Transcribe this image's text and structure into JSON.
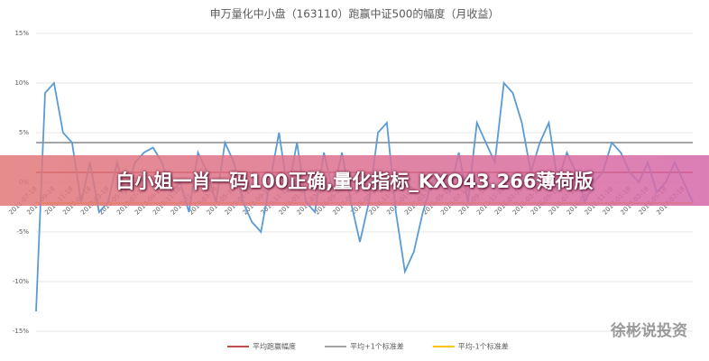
{
  "chart_data": {
    "type": "line",
    "title": "申万量化中小盘（163110）跑赢中证500的幅度（月收益）",
    "categories": [
      "2011-07-18",
      null,
      "2011-09-18",
      null,
      "2011-11-18",
      null,
      "2012-01-18",
      null,
      "2012-03-18",
      null,
      "2012-05-18",
      null,
      "2012-07-18",
      null,
      "2012-09-18",
      null,
      "2012-11-18",
      null,
      "2013-01-18",
      null,
      "2013-03-18",
      null,
      "2013-05-18",
      null,
      "2013-07-18",
      null,
      "2013-09-18",
      null,
      "2013-11-18",
      null,
      "2014-01-18",
      null,
      "2014-03-18",
      null,
      "2014-05-18",
      null,
      "2014-07-18",
      null,
      "2014-09-18",
      null,
      "2014-11-18",
      null,
      "2015-01-18",
      null,
      "2015-03-18",
      null,
      "2015-05-18",
      null,
      "2015-07-18",
      null,
      "2015-09-18",
      null,
      "2015-11-18",
      null,
      "2016-01-18",
      null,
      "2016-03-18",
      null,
      "2016-05-18",
      null,
      "2016-07-18",
      null,
      "2016-09-18",
      null,
      "2016-11-18",
      null,
      "2017-01-18",
      null,
      "2017-03-18",
      null,
      "2017-05-18",
      null,
      "2017-07-18",
      null
    ],
    "values": [
      -13,
      9,
      10,
      5,
      4,
      -2,
      2,
      -3,
      -2,
      2,
      -1,
      2,
      3,
      3.5,
      2,
      -1,
      0,
      -3,
      3,
      1,
      -2,
      4,
      2,
      -2,
      -4,
      -5,
      0,
      5,
      -1,
      4,
      -2,
      -3,
      3,
      -1,
      3,
      -2,
      -6,
      -2,
      5,
      6,
      -3,
      -9,
      -7,
      -3,
      0,
      1,
      -1,
      3,
      -2,
      6,
      4,
      2,
      10,
      9,
      6,
      1,
      4,
      6,
      0,
      3,
      1,
      -2,
      0,
      1,
      4,
      3,
      1,
      0,
      2,
      -1,
      0,
      2,
      0,
      -2
    ],
    "color": "#5b9bd5",
    "reference_lines": [
      {
        "name": "平均跑赢幅度",
        "color": "#c0504d",
        "value": 1
      },
      {
        "name": "平均+1个标准差",
        "color": "#a5a5a5",
        "value": 4
      },
      {
        "name": "平均-1个标准差",
        "color": "#ffc000",
        "value": -2.1
      }
    ],
    "ylim": [
      -15,
      15
    ],
    "yticks": [
      {
        "value": -15,
        "label": "-15%"
      },
      {
        "value": -10,
        "label": "-10%"
      },
      {
        "value": -5,
        "label": "-5%"
      },
      {
        "value": 0,
        "label": "0%"
      },
      {
        "value": 5,
        "label": "5%"
      },
      {
        "value": 10,
        "label": "10%"
      },
      {
        "value": 15,
        "label": "15%"
      }
    ],
    "grid": true
  },
  "overlay": {
    "banner": "白小姐一肖一码100正确,量化指标_KXO43.266薄荷版",
    "watermark": "徐彬说投资"
  }
}
